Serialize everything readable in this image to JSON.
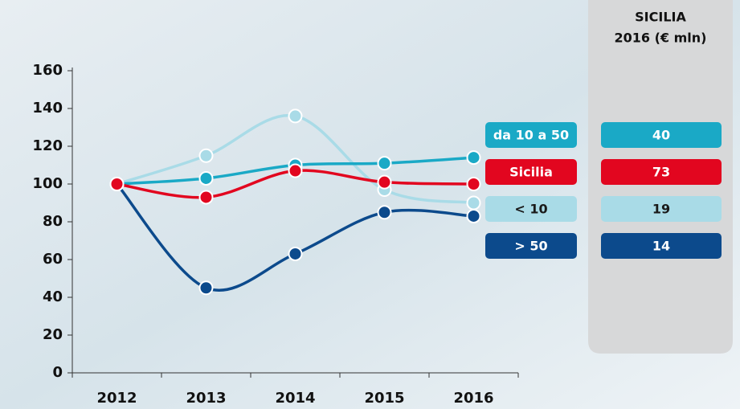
{
  "chart_data": {
    "type": "line",
    "smooth": true,
    "categories": [
      "2012",
      "2013",
      "2014",
      "2015",
      "2016"
    ],
    "ylim": [
      0,
      160
    ],
    "yticks": [
      0,
      20,
      40,
      60,
      80,
      100,
      120,
      140,
      160
    ],
    "series": [
      {
        "name": "da 10 a 50",
        "color": "#1aa9c6",
        "text_color": "#ffffff",
        "values": [
          100,
          103,
          110,
          111,
          114
        ],
        "total_2016": 40
      },
      {
        "name": "Sicilia",
        "color": "#e2061f",
        "text_color": "#ffffff",
        "values": [
          100,
          93,
          107,
          101,
          100
        ],
        "total_2016": 73
      },
      {
        "name": "< 10",
        "color": "#a9dbe7",
        "text_color": "#1a1a1a",
        "values": [
          100,
          115,
          136,
          97,
          90
        ],
        "total_2016": 19
      },
      {
        "name": "> 50",
        "color": "#0c4a8c",
        "text_color": "#ffffff",
        "values": [
          100,
          45,
          63,
          85,
          83
        ],
        "total_2016": 14
      }
    ],
    "panel_title": [
      "SICILIA",
      "2016 (€ mln)"
    ]
  }
}
